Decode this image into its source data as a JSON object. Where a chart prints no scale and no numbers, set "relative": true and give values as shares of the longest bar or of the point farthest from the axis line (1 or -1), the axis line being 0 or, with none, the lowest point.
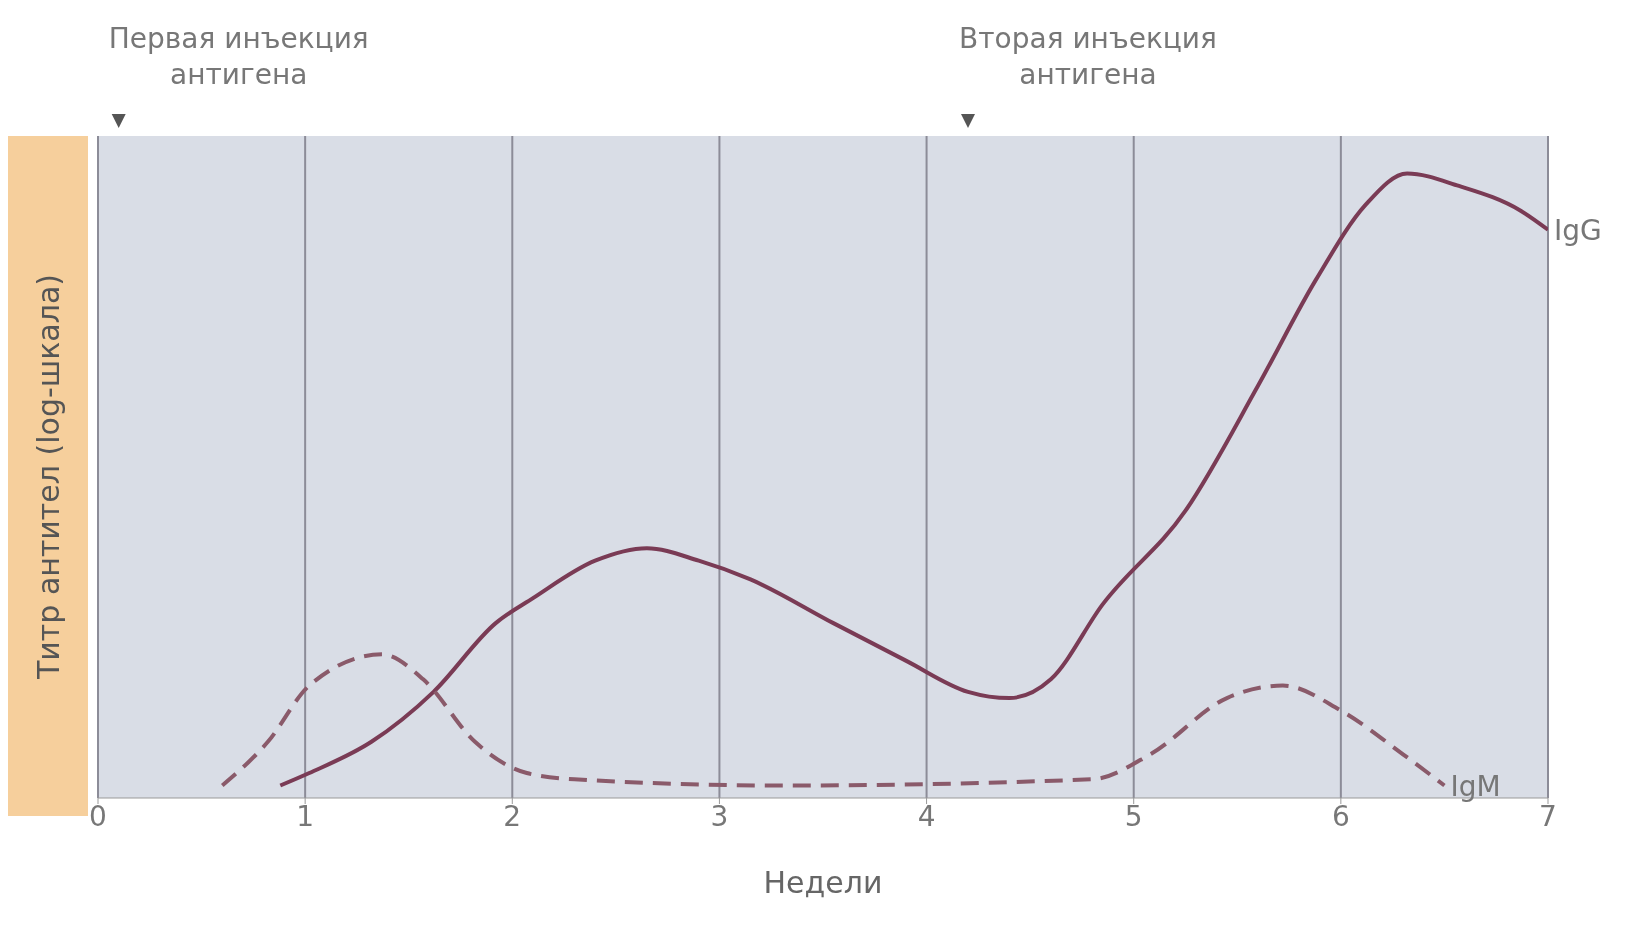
{
  "chart_data": {
    "type": "line",
    "relative": true,
    "xlabel": "Недели",
    "ylabel": "Титр антител (log-шкала)",
    "xlim": [
      0,
      7
    ],
    "xticks": [
      0,
      1,
      2,
      3,
      4,
      5,
      6,
      7
    ],
    "grid": "x",
    "marker": "none",
    "annotations": [
      "Первая инъекция антигена",
      "Вторая инъекция антигена"
    ],
    "series": [
      {
        "name": "IgG",
        "color": "#7a3b55",
        "line_style": "solid",
        "x": [
          0.88,
          1.02,
          1.32,
          1.62,
          1.92,
          2.1,
          2.4,
          2.65,
          2.9,
          3.15,
          3.55,
          3.9,
          4.2,
          4.4,
          4.6,
          4.85,
          5.25,
          5.6,
          5.88,
          6.12,
          6.32,
          6.57,
          6.87,
          7
        ],
        "values": [
          0.02,
          0.04,
          0.09,
          0.17,
          0.28,
          0.32,
          0.38,
          0.4,
          0.38,
          0.35,
          0.28,
          0.22,
          0.17,
          0.16,
          0.19,
          0.31,
          0.46,
          0.66,
          0.83,
          0.95,
          1,
          0.98,
          0.94,
          0.91
        ]
      },
      {
        "name": "IgM",
        "color": "#8a5a6a",
        "line_style": "dashed",
        "x": [
          0.6,
          0.82,
          1.02,
          1.37,
          1.57,
          1.82,
          2.07,
          2.3,
          3.3,
          4.8,
          5.08,
          5.45,
          5.72,
          6,
          6.3,
          6.5
        ],
        "values": [
          0.02,
          0.09,
          0.18,
          0.23,
          0.19,
          0.09,
          0.04,
          0.03,
          0.02,
          0.03,
          0.07,
          0.16,
          0.18,
          0.14,
          0.07,
          0.02
        ]
      }
    ]
  }
}
